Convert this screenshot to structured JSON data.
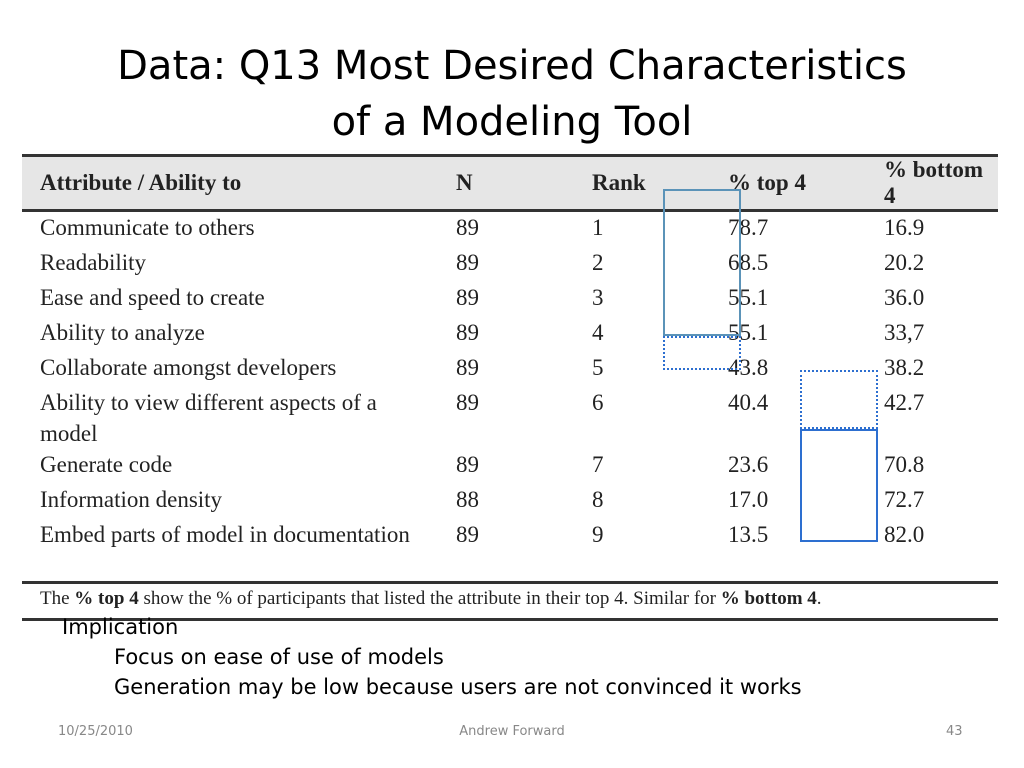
{
  "slide": {
    "title_line1": "Data: Q13 Most Desired Characteristics",
    "title_line2": "of a Modeling Tool"
  },
  "table": {
    "headers": [
      "Attribute / Ability to",
      "N",
      "Rank",
      "% top 4",
      "% bottom 4"
    ],
    "rows": [
      {
        "attribute": "Communicate to others",
        "n": "89",
        "rank": "1",
        "top4": "78.7",
        "bottom4": "16.9"
      },
      {
        "attribute": "Readability",
        "n": "89",
        "rank": "2",
        "top4": "68.5",
        "bottom4": "20.2"
      },
      {
        "attribute": "Ease and speed to create",
        "n": "89",
        "rank": "3",
        "top4": "55.1",
        "bottom4": "36.0"
      },
      {
        "attribute": "Ability to analyze",
        "n": "89",
        "rank": "4",
        "top4": "55.1",
        "bottom4": "33,7"
      },
      {
        "attribute": "Collaborate amongst developers",
        "n": "89",
        "rank": "5",
        "top4": "43.8",
        "bottom4": "38.2"
      },
      {
        "attribute": "Ability to view different aspects of a model",
        "n": "89",
        "rank": "6",
        "top4": "40.4",
        "bottom4": "42.7"
      },
      {
        "attribute": "Generate code",
        "n": "89",
        "rank": "7",
        "top4": "23.6",
        "bottom4": "70.8"
      },
      {
        "attribute": "Information density",
        "n": "88",
        "rank": "8",
        "top4": "17.0",
        "bottom4": "72.7"
      },
      {
        "attribute": "Embed parts of model in documentation",
        "n": "89",
        "rank": "9",
        "top4": "13.5",
        "bottom4": "82.0"
      }
    ],
    "footnote": {
      "p1": "The ",
      "b1": "% top 4",
      "p2": " show the % of participants that listed the attribute in their top 4. Similar for ",
      "b2": "% bottom 4",
      "p3": "."
    }
  },
  "implication": {
    "heading": "Implication",
    "points": [
      "Focus on ease of use of models",
      "Generation may be low because users are not convinced it works"
    ]
  },
  "footer": {
    "date": "10/25/2010",
    "author": "Andrew Forward",
    "page": "43"
  },
  "colors": {
    "highlight_solid_teal": "#5b93b8",
    "highlight_blue": "#2d6fd0"
  }
}
